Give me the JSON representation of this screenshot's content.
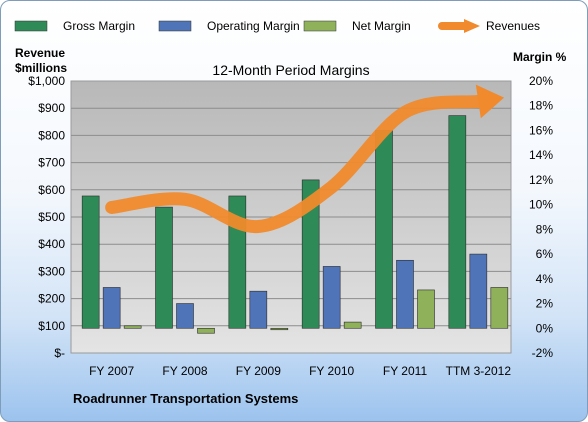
{
  "chart_data": {
    "type": "bar",
    "title": "12-Month Period Margins",
    "subtitle": "Roadrunner Transportation Systems",
    "left_axis": {
      "label_line1": "Revenue",
      "label_line2": "$millions",
      "ticks": [
        "$-",
        "$100",
        "$200",
        "$300",
        "$400",
        "$500",
        "$600",
        "$700",
        "$800",
        "$900",
        "$1,000"
      ],
      "ylim": [
        0,
        1000
      ]
    },
    "right_axis": {
      "label": "Margin %",
      "ticks": [
        "-2%",
        "0%",
        "2%",
        "4%",
        "6%",
        "8%",
        "10%",
        "12%",
        "14%",
        "16%",
        "18%",
        "20%"
      ],
      "ylim": [
        -2,
        20
      ]
    },
    "categories": [
      "FY 2007",
      "FY 2008",
      "FY 2009",
      "FY 2010",
      "FY 2011",
      "TTM 3-2012"
    ],
    "series": [
      {
        "name": "Gross Margin",
        "axis": "right",
        "color": "#2e8b57",
        "values": [
          10.7,
          9.8,
          10.7,
          12.0,
          16.0,
          17.2
        ]
      },
      {
        "name": "Operating Margin",
        "axis": "right",
        "color": "#4f75b8",
        "values": [
          3.3,
          2.0,
          3.0,
          5.0,
          5.5,
          6.0
        ]
      },
      {
        "name": "Net Margin",
        "axis": "right",
        "color": "#8fb15a",
        "values": [
          0.2,
          -0.4,
          -0.1,
          0.5,
          3.1,
          3.3
        ]
      },
      {
        "name": "Revenues",
        "axis": "left",
        "type": "line",
        "color": "#f08a2c",
        "values": [
          535,
          565,
          465,
          610,
          885,
          925
        ]
      }
    ],
    "legend_position": "top",
    "grid": true
  }
}
